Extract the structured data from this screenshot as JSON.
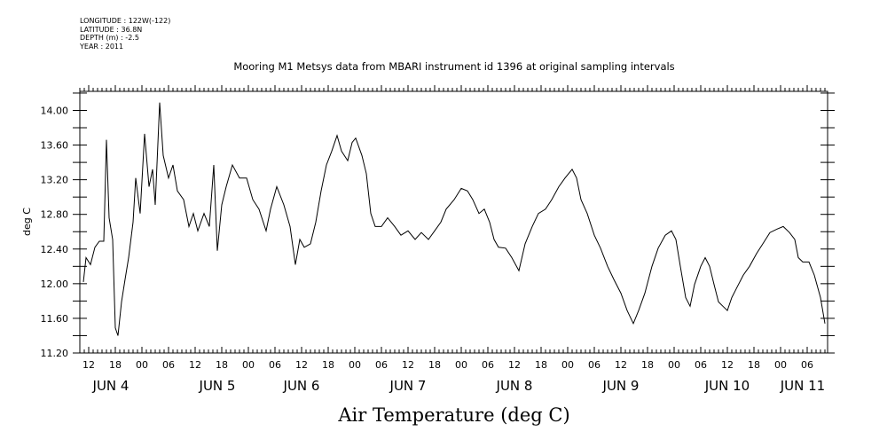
{
  "header": {
    "lines": [
      "LONGITUDE : 122W(-122)",
      "LATITUDE : 36.8N",
      "DEPTH (m) : -2.5",
      "YEAR : 2011"
    ]
  },
  "chart_data": {
    "type": "line",
    "title": "Mooring M1 Metsys data from MBARI instrument id 1396 at original sampling intervals",
    "xlabel": "Air Temperature (deg C)",
    "ylabel": "deg C",
    "x_units": "hours since 2011-06-04 00:00",
    "xlim": [
      10,
      178.6
    ],
    "ylim": [
      11.2,
      14.22
    ],
    "yticks": [
      11.2,
      11.6,
      12.0,
      12.4,
      12.8,
      13.2,
      13.6,
      14.0
    ],
    "ytick_labels": [
      "11.20",
      "11.60",
      "12.00",
      "12.40",
      "12.80",
      "13.20",
      "13.60",
      "14.00"
    ],
    "xticks": [
      12,
      18,
      24,
      30,
      36,
      42,
      48,
      54,
      60,
      66,
      72,
      78,
      84,
      90,
      96,
      102,
      108,
      114,
      120,
      126,
      132,
      138,
      144,
      150,
      156,
      162,
      168,
      174
    ],
    "xtick_labels": [
      "12",
      "18",
      "00",
      "06",
      "12",
      "18",
      "00",
      "06",
      "12",
      "18",
      "00",
      "06",
      "12",
      "18",
      "00",
      "06",
      "12",
      "18",
      "00",
      "06",
      "12",
      "18",
      "00",
      "06",
      "12",
      "18",
      "00",
      "06"
    ],
    "day_labels": [
      {
        "text": "JUN  4",
        "x": 17
      },
      {
        "text": "JUN  5",
        "x": 41
      },
      {
        "text": "JUN  6",
        "x": 60
      },
      {
        "text": "JUN  7",
        "x": 84
      },
      {
        "text": "JUN  8",
        "x": 108
      },
      {
        "text": "JUN  9",
        "x": 132
      },
      {
        "text": "JUN 10",
        "x": 156
      },
      {
        "text": "JUN 11",
        "x": 173
      }
    ],
    "grid": false,
    "series": [
      {
        "name": "Air Temperature",
        "points": [
          [
            10.8,
            12.02
          ],
          [
            11.4,
            12.3
          ],
          [
            12.4,
            12.22
          ],
          [
            13.4,
            12.42
          ],
          [
            14.4,
            12.49
          ],
          [
            15.4,
            12.49
          ],
          [
            16,
            13.66
          ],
          [
            16.6,
            12.76
          ],
          [
            17.4,
            12.51
          ],
          [
            18,
            11.49
          ],
          [
            18.6,
            11.4
          ],
          [
            19.4,
            11.79
          ],
          [
            20.2,
            12.05
          ],
          [
            21,
            12.3
          ],
          [
            22,
            12.71
          ],
          [
            22.6,
            13.22
          ],
          [
            23.6,
            12.81
          ],
          [
            24.6,
            13.73
          ],
          [
            25.6,
            13.12
          ],
          [
            26.4,
            13.32
          ],
          [
            27,
            12.91
          ],
          [
            28,
            14.09
          ],
          [
            28.8,
            13.48
          ],
          [
            30,
            13.22
          ],
          [
            31,
            13.37
          ],
          [
            32,
            13.07
          ],
          [
            33.4,
            12.97
          ],
          [
            34.6,
            12.66
          ],
          [
            35.6,
            12.81
          ],
          [
            36.6,
            12.61
          ],
          [
            38,
            12.81
          ],
          [
            39.2,
            12.66
          ],
          [
            40.2,
            13.37
          ],
          [
            41,
            12.38
          ],
          [
            42,
            12.91
          ],
          [
            43,
            13.12
          ],
          [
            44.4,
            13.37
          ],
          [
            46,
            13.22
          ],
          [
            47.6,
            13.22
          ],
          [
            49,
            12.97
          ],
          [
            50.4,
            12.86
          ],
          [
            52,
            12.61
          ],
          [
            53,
            12.86
          ],
          [
            54.4,
            13.12
          ],
          [
            56,
            12.91
          ],
          [
            57.4,
            12.66
          ],
          [
            58.6,
            12.22
          ],
          [
            59.6,
            12.51
          ],
          [
            60.6,
            12.42
          ],
          [
            62,
            12.46
          ],
          [
            63.2,
            12.71
          ],
          [
            64.4,
            13.07
          ],
          [
            65.6,
            13.37
          ],
          [
            66.8,
            13.53
          ],
          [
            68,
            13.71
          ],
          [
            69,
            13.53
          ],
          [
            70.4,
            13.42
          ],
          [
            71.4,
            13.63
          ],
          [
            72.2,
            13.68
          ],
          [
            73.6,
            13.48
          ],
          [
            74.6,
            13.27
          ],
          [
            75.6,
            12.81
          ],
          [
            76.6,
            12.66
          ],
          [
            78,
            12.66
          ],
          [
            79.4,
            12.76
          ],
          [
            81,
            12.66
          ],
          [
            82.4,
            12.56
          ],
          [
            84,
            12.61
          ],
          [
            85.6,
            12.51
          ],
          [
            87,
            12.59
          ],
          [
            88.6,
            12.51
          ],
          [
            90,
            12.61
          ],
          [
            91.4,
            12.71
          ],
          [
            92.6,
            12.86
          ],
          [
            94.4,
            12.97
          ],
          [
            96,
            13.1
          ],
          [
            97.4,
            13.07
          ],
          [
            98.6,
            12.97
          ],
          [
            100,
            12.81
          ],
          [
            101.2,
            12.86
          ],
          [
            102.4,
            12.71
          ],
          [
            103.4,
            12.51
          ],
          [
            104.4,
            12.42
          ],
          [
            106,
            12.41
          ],
          [
            107.4,
            12.3
          ],
          [
            109,
            12.15
          ],
          [
            110.4,
            12.46
          ],
          [
            112,
            12.66
          ],
          [
            113.4,
            12.81
          ],
          [
            115,
            12.86
          ],
          [
            116.4,
            12.97
          ],
          [
            118,
            13.12
          ],
          [
            119.4,
            13.22
          ],
          [
            121,
            13.32
          ],
          [
            122,
            13.22
          ],
          [
            123,
            12.97
          ],
          [
            124.4,
            12.81
          ],
          [
            126,
            12.56
          ],
          [
            127.4,
            12.41
          ],
          [
            129,
            12.2
          ],
          [
            130.4,
            12.05
          ],
          [
            132,
            11.89
          ],
          [
            133.4,
            11.69
          ],
          [
            134.8,
            11.54
          ],
          [
            136,
            11.69
          ],
          [
            137.4,
            11.89
          ],
          [
            139,
            12.2
          ],
          [
            140.4,
            12.41
          ],
          [
            142,
            12.56
          ],
          [
            143.4,
            12.61
          ],
          [
            144.4,
            12.51
          ],
          [
            145.4,
            12.2
          ],
          [
            146.6,
            11.84
          ],
          [
            147.6,
            11.74
          ],
          [
            148.6,
            11.99
          ],
          [
            150,
            12.2
          ],
          [
            151,
            12.3
          ],
          [
            152,
            12.2
          ],
          [
            153,
            11.99
          ],
          [
            154,
            11.79
          ],
          [
            155,
            11.74
          ],
          [
            156,
            11.69
          ],
          [
            157,
            11.84
          ],
          [
            158,
            11.94
          ],
          [
            159.6,
            12.1
          ],
          [
            161,
            12.2
          ],
          [
            162.6,
            12.35
          ],
          [
            164,
            12.46
          ],
          [
            165.6,
            12.59
          ],
          [
            167.2,
            12.63
          ],
          [
            168.6,
            12.66
          ],
          [
            170,
            12.59
          ],
          [
            171.2,
            12.51
          ],
          [
            172,
            12.3
          ],
          [
            173,
            12.25
          ],
          [
            174.4,
            12.25
          ],
          [
            175.6,
            12.1
          ],
          [
            177,
            11.84
          ],
          [
            178,
            11.54
          ]
        ]
      }
    ]
  }
}
